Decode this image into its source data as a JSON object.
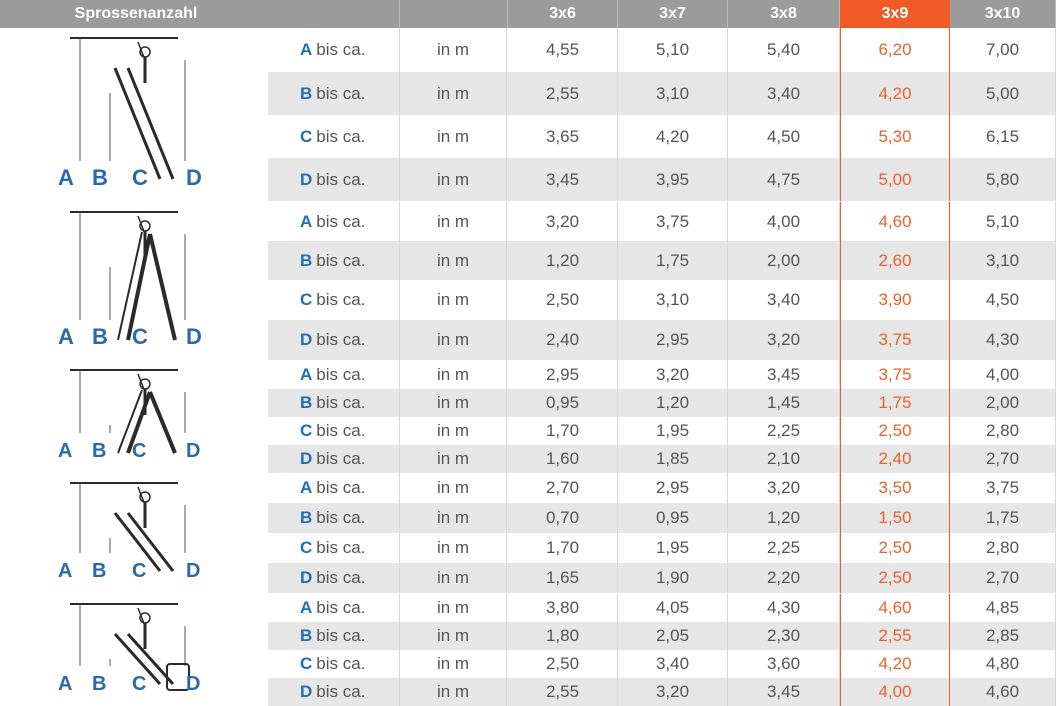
{
  "header": {
    "title": "Sprossenanzahl",
    "columns": [
      "3x6",
      "3x7",
      "3x8",
      "3x9",
      "3x10"
    ],
    "highlight_index": 3,
    "highlight_color": "#ef5a27",
    "header_bg": "#9b9b9b"
  },
  "letter_color": "#1f6fb5",
  "highlight_text_color": "#e8622e",
  "illustration_labels": [
    "A",
    "B",
    "C",
    "D"
  ],
  "groups": [
    {
      "name": "ladder-usage-1",
      "rows": [
        {
          "letter": "A",
          "suffix": "bis ca.",
          "unit": "in m",
          "values": [
            "4,55",
            "5,10",
            "5,40",
            "6,20",
            "7,00"
          ]
        },
        {
          "letter": "B",
          "suffix": "bis ca.",
          "unit": "in m",
          "values": [
            "2,55",
            "3,10",
            "3,40",
            "4,20",
            "5,00"
          ]
        },
        {
          "letter": "C",
          "suffix": "bis ca.",
          "unit": "in m",
          "values": [
            "3,65",
            "4,20",
            "4,50",
            "5,30",
            "6,15"
          ]
        },
        {
          "letter": "D",
          "suffix": "bis ca.",
          "unit": "in m",
          "values": [
            "3,45",
            "3,95",
            "4,75",
            "5,00",
            "5,80"
          ]
        }
      ]
    },
    {
      "name": "ladder-usage-2",
      "rows": [
        {
          "letter": "A",
          "suffix": "bis ca.",
          "unit": "in m",
          "values": [
            "3,20",
            "3,75",
            "4,00",
            "4,60",
            "5,10"
          ]
        },
        {
          "letter": "B",
          "suffix": "bis ca.",
          "unit": "in m",
          "values": [
            "1,20",
            "1,75",
            "2,00",
            "2,60",
            "3,10"
          ]
        },
        {
          "letter": "C",
          "suffix": "bis ca.",
          "unit": "in m",
          "values": [
            "2,50",
            "3,10",
            "3,40",
            "3,90",
            "4,50"
          ]
        },
        {
          "letter": "D",
          "suffix": "bis ca.",
          "unit": "in m",
          "values": [
            "2,40",
            "2,95",
            "3,20",
            "3,75",
            "4,30"
          ]
        }
      ]
    },
    {
      "name": "ladder-usage-3",
      "rows": [
        {
          "letter": "A",
          "suffix": "bis ca.",
          "unit": "in m",
          "values": [
            "2,95",
            "3,20",
            "3,45",
            "3,75",
            "4,00"
          ]
        },
        {
          "letter": "B",
          "suffix": "bis ca.",
          "unit": "in m",
          "values": [
            "0,95",
            "1,20",
            "1,45",
            "1,75",
            "2,00"
          ]
        },
        {
          "letter": "C",
          "suffix": "bis ca.",
          "unit": "in m",
          "values": [
            "1,70",
            "1,95",
            "2,25",
            "2,50",
            "2,80"
          ]
        },
        {
          "letter": "D",
          "suffix": "bis ca.",
          "unit": "in m",
          "values": [
            "1,60",
            "1,85",
            "2,10",
            "2,40",
            "2,70"
          ]
        }
      ]
    },
    {
      "name": "ladder-usage-4",
      "rows": [
        {
          "letter": "A",
          "suffix": "bis ca.",
          "unit": "in m",
          "values": [
            "2,70",
            "2,95",
            "3,20",
            "3,50",
            "3,75"
          ]
        },
        {
          "letter": "B",
          "suffix": "bis ca.",
          "unit": "in m",
          "values": [
            "0,70",
            "0,95",
            "1,20",
            "1,50",
            "1,75"
          ]
        },
        {
          "letter": "C",
          "suffix": "bis ca.",
          "unit": "in m",
          "values": [
            "1,70",
            "1,95",
            "2,25",
            "2,50",
            "2,80"
          ]
        },
        {
          "letter": "D",
          "suffix": "bis ca.",
          "unit": "in m",
          "values": [
            "1,65",
            "1,90",
            "2,20",
            "2,50",
            "2,70"
          ]
        }
      ]
    },
    {
      "name": "ladder-usage-5",
      "rows": [
        {
          "letter": "A",
          "suffix": "bis ca.",
          "unit": "in m",
          "values": [
            "3,80",
            "4,05",
            "4,30",
            "4,60",
            "4,85"
          ]
        },
        {
          "letter": "B",
          "suffix": "bis ca.",
          "unit": "in m",
          "values": [
            "1,80",
            "2,05",
            "2,30",
            "2,55",
            "2,85"
          ]
        },
        {
          "letter": "C",
          "suffix": "bis ca.",
          "unit": "in m",
          "values": [
            "2,50",
            "3,40",
            "3,60",
            "4,20",
            "4,80"
          ]
        },
        {
          "letter": "D",
          "suffix": "bis ca.",
          "unit": "in m",
          "values": [
            "2,55",
            "3,20",
            "3,45",
            "4,00",
            "4,60"
          ]
        }
      ]
    }
  ]
}
